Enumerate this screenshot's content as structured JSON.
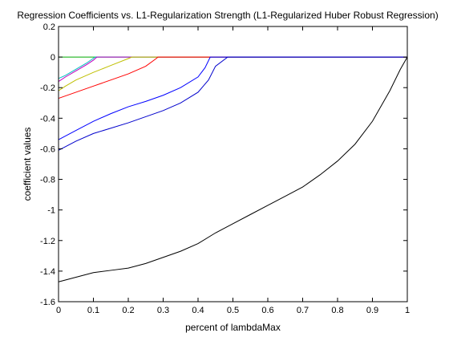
{
  "chart_data": {
    "type": "line",
    "title": "Regression Coefficients vs. L1-Regularization Strength (L1-Regularized Huber Robust Regression)",
    "xlabel": "percent of lambdaMax",
    "ylabel": "coefficient values",
    "xlim": [
      0,
      1
    ],
    "ylim": [
      -1.6,
      0.2
    ],
    "grid": false,
    "x_ticks": [
      0,
      0.1,
      0.2,
      0.3,
      0.4,
      0.5,
      0.6,
      0.7,
      0.8,
      0.9,
      1
    ],
    "x_tick_labels": [
      "0",
      "0.1",
      "0.2",
      "0.3",
      "0.4",
      "0.5",
      "0.6",
      "0.7",
      "0.8",
      "0.9",
      "1"
    ],
    "y_ticks": [
      0.2,
      0,
      -0.2,
      -0.4,
      -0.6,
      -0.8,
      -1,
      -1.2,
      -1.4,
      -1.6
    ],
    "y_tick_labels": [
      "0.2",
      "0",
      "-0.2",
      "-0.4",
      "-0.6",
      "-0.8",
      "-1",
      "-1.2",
      "-1.4",
      "-1.6"
    ],
    "series": [
      {
        "color": "#00aa00",
        "points": [
          [
            0,
            0
          ],
          [
            0.2,
            0
          ],
          [
            1,
            0
          ]
        ]
      },
      {
        "color": "#00bfbf",
        "points": [
          [
            0,
            -0.14
          ],
          [
            0.02,
            -0.12
          ],
          [
            0.05,
            -0.08
          ],
          [
            0.08,
            -0.04
          ],
          [
            0.105,
            0
          ],
          [
            1,
            0
          ]
        ]
      },
      {
        "color": "#bf00bf",
        "points": [
          [
            0,
            -0.16
          ],
          [
            0.02,
            -0.13
          ],
          [
            0.05,
            -0.09
          ],
          [
            0.08,
            -0.05
          ],
          [
            0.1,
            -0.02
          ],
          [
            0.11,
            0
          ],
          [
            1,
            0
          ]
        ]
      },
      {
        "color": "#bfbf00",
        "points": [
          [
            0,
            -0.22
          ],
          [
            0.02,
            -0.19
          ],
          [
            0.05,
            -0.15
          ],
          [
            0.1,
            -0.1
          ],
          [
            0.15,
            -0.055
          ],
          [
            0.2,
            -0.01
          ],
          [
            0.21,
            0
          ],
          [
            1,
            0
          ]
        ]
      },
      {
        "color": "#ff0000",
        "points": [
          [
            0,
            -0.27
          ],
          [
            0.05,
            -0.23
          ],
          [
            0.1,
            -0.19
          ],
          [
            0.15,
            -0.15
          ],
          [
            0.2,
            -0.11
          ],
          [
            0.25,
            -0.06
          ],
          [
            0.28,
            -0.01
          ],
          [
            0.285,
            0
          ],
          [
            1,
            0
          ]
        ]
      },
      {
        "color": "#0000ff",
        "points": [
          [
            0,
            -0.54
          ],
          [
            0.05,
            -0.48
          ],
          [
            0.1,
            -0.42
          ],
          [
            0.15,
            -0.37
          ],
          [
            0.2,
            -0.325
          ],
          [
            0.25,
            -0.29
          ],
          [
            0.3,
            -0.25
          ],
          [
            0.35,
            -0.2
          ],
          [
            0.4,
            -0.13
          ],
          [
            0.42,
            -0.07
          ],
          [
            0.435,
            0
          ],
          [
            1,
            0
          ]
        ]
      },
      {
        "color": "#0000cc",
        "points": [
          [
            0,
            -0.61
          ],
          [
            0.05,
            -0.55
          ],
          [
            0.1,
            -0.5
          ],
          [
            0.15,
            -0.465
          ],
          [
            0.2,
            -0.43
          ],
          [
            0.25,
            -0.39
          ],
          [
            0.3,
            -0.35
          ],
          [
            0.35,
            -0.3
          ],
          [
            0.4,
            -0.23
          ],
          [
            0.43,
            -0.15
          ],
          [
            0.45,
            -0.06
          ],
          [
            0.485,
            0
          ],
          [
            1,
            0
          ]
        ]
      },
      {
        "color": "#000000",
        "points": [
          [
            0,
            -1.47
          ],
          [
            0.05,
            -1.44
          ],
          [
            0.1,
            -1.41
          ],
          [
            0.15,
            -1.395
          ],
          [
            0.2,
            -1.38
          ],
          [
            0.25,
            -1.35
          ],
          [
            0.3,
            -1.31
          ],
          [
            0.35,
            -1.27
          ],
          [
            0.4,
            -1.22
          ],
          [
            0.45,
            -1.15
          ],
          [
            0.5,
            -1.09
          ],
          [
            0.55,
            -1.03
          ],
          [
            0.6,
            -0.97
          ],
          [
            0.65,
            -0.91
          ],
          [
            0.7,
            -0.85
          ],
          [
            0.75,
            -0.77
          ],
          [
            0.8,
            -0.68
          ],
          [
            0.85,
            -0.57
          ],
          [
            0.9,
            -0.42
          ],
          [
            0.95,
            -0.22
          ],
          [
            0.98,
            -0.08
          ],
          [
            1,
            0
          ]
        ]
      }
    ]
  }
}
